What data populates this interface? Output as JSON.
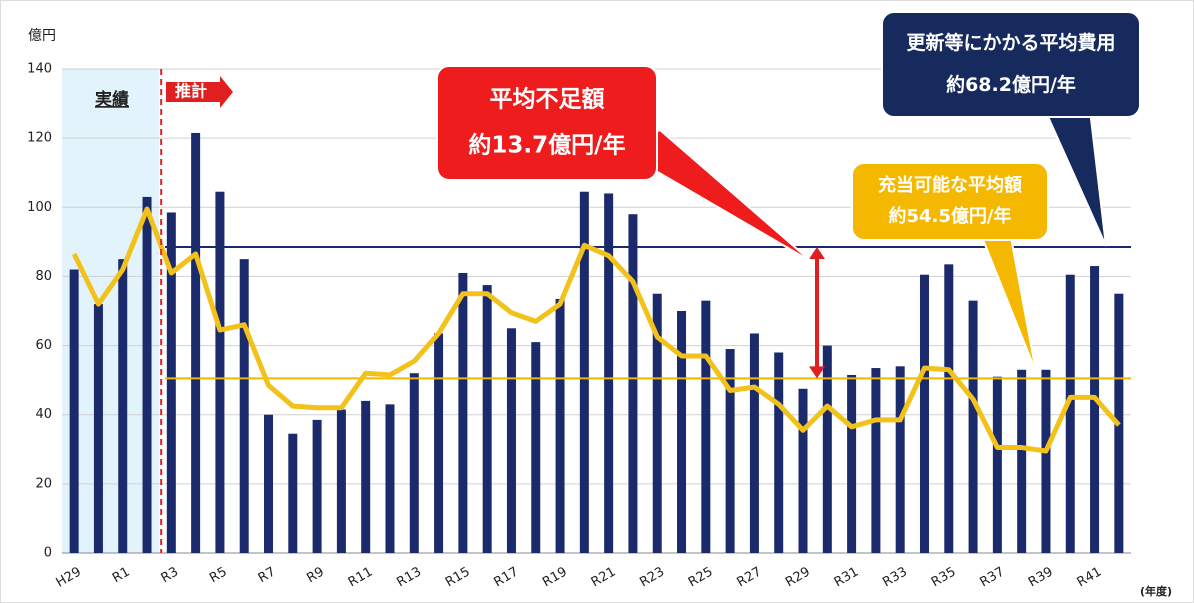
{
  "chart_data": {
    "type": "bar",
    "y_label": "億円",
    "x_label": "(年度)",
    "categories": [
      "H29",
      null,
      "R1",
      null,
      "R3",
      null,
      "R5",
      null,
      "R7",
      null,
      "R9",
      null,
      "R11",
      null,
      "R13",
      null,
      "R15",
      null,
      "R17",
      null,
      "R19",
      null,
      "R21",
      null,
      "R23",
      null,
      "R25",
      null,
      "R27",
      null,
      "R29",
      null,
      "R31",
      null,
      "R33",
      null,
      "R35",
      null,
      "R37",
      null,
      "R39",
      null,
      "R41",
      null
    ],
    "series": [
      {
        "type": "bar",
        "color": "#1b2a6b",
        "values": [
          82,
          72,
          85,
          103,
          98.5,
          121.5,
          104.5,
          85,
          40,
          34.5,
          38.5,
          41.5,
          44,
          43,
          52,
          63.5,
          81,
          77.5,
          65,
          61,
          73.5,
          104.5,
          104,
          98,
          75,
          70,
          73,
          59,
          63.5,
          58,
          47.5,
          60,
          51.5,
          53.5,
          54,
          80.5,
          83.5,
          73,
          51,
          53,
          53,
          80.5,
          83,
          75
        ]
      },
      {
        "type": "line",
        "color": "#f2c21b",
        "values": [
          86.5,
          72,
          82,
          99.5,
          81,
          86.5,
          64.5,
          66,
          48.5,
          42.5,
          42,
          42,
          52,
          51.5,
          55.5,
          63.5,
          75,
          75,
          69.5,
          67,
          72,
          89,
          86,
          78.5,
          62.5,
          57,
          57,
          47,
          48,
          43,
          35.5,
          42.5,
          36.5,
          38.5,
          38.5,
          53.5,
          53,
          44.5,
          30.5,
          30.5,
          29.5,
          45,
          45,
          37
        ]
      }
    ],
    "reference_lines": [
      {
        "value": 88.5,
        "color": "#1b2a6b"
      },
      {
        "value": 50.5,
        "color": "#f2b800"
      }
    ],
    "ylim": [
      0,
      140
    ],
    "yticks": [
      0,
      20,
      40,
      60,
      80,
      100,
      120,
      140
    ],
    "grid": true,
    "annotations": {
      "actual": "実績",
      "forecast": "推計",
      "shortfall": [
        "平均不足額",
        "約13.7億円/年"
      ],
      "cost": [
        "更新等にかかる平均費用",
        "約68.2億円/年"
      ],
      "available": [
        "充当可能な平均額",
        "約54.5億円/年"
      ]
    }
  }
}
